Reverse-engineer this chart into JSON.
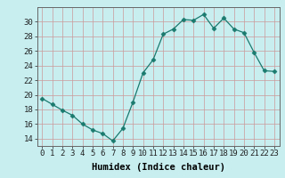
{
  "x": [
    0,
    1,
    2,
    3,
    4,
    5,
    6,
    7,
    8,
    9,
    10,
    11,
    12,
    13,
    14,
    15,
    16,
    17,
    18,
    19,
    20,
    21,
    22,
    23
  ],
  "y": [
    19.5,
    18.7,
    17.9,
    17.2,
    16.0,
    15.2,
    14.7,
    13.7,
    15.4,
    19.0,
    23.0,
    24.8,
    28.3,
    29.0,
    30.3,
    30.2,
    31.0,
    29.1,
    30.5,
    29.0,
    28.5,
    25.8,
    23.3,
    23.2
  ],
  "line_color": "#1a7a6e",
  "marker": "D",
  "marker_size": 2.5,
  "bg_color": "#c8eef0",
  "grid_color": "#cc9999",
  "xlabel": "Humidex (Indice chaleur)",
  "ylim": [
    13,
    32
  ],
  "xlim": [
    -0.5,
    23.5
  ],
  "yticks": [
    14,
    16,
    18,
    20,
    22,
    24,
    26,
    28,
    30
  ],
  "xticks": [
    0,
    1,
    2,
    3,
    4,
    5,
    6,
    7,
    8,
    9,
    10,
    11,
    12,
    13,
    14,
    15,
    16,
    17,
    18,
    19,
    20,
    21,
    22,
    23
  ],
  "xlabel_fontsize": 7.5,
  "tick_fontsize": 6.5
}
